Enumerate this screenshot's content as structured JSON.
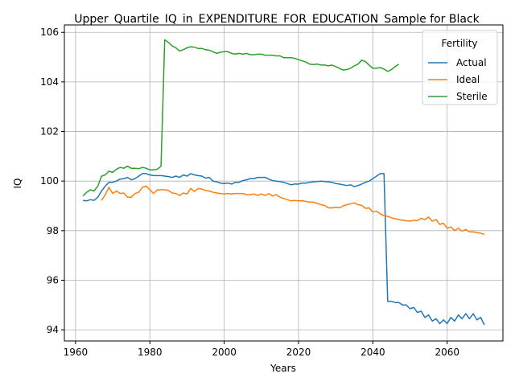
{
  "chart_data": {
    "type": "line",
    "title": "Upper_Quartile_IQ_in_EXPENDITURE_FOR_EDUCATION_Sample for Black",
    "xlabel": "Years",
    "ylabel": "IQ",
    "xlim": [
      1957,
      2075
    ],
    "ylim": [
      93.55,
      106.3
    ],
    "xticks": [
      1960,
      1980,
      2000,
      2020,
      2040,
      2060
    ],
    "yticks": [
      94,
      96,
      98,
      100,
      102,
      104,
      106
    ],
    "grid": true,
    "legend": {
      "title": "Fertility",
      "placement": "top-right"
    },
    "series": [
      {
        "name": "Actual",
        "color": "#1f77b4",
        "points": [
          [
            1962,
            99.22
          ],
          [
            1963,
            99.2
          ],
          [
            1964,
            99.25
          ],
          [
            1965,
            99.22
          ],
          [
            1966,
            99.35
          ],
          [
            1967,
            99.6
          ],
          [
            1968,
            99.8
          ],
          [
            1969,
            99.95
          ],
          [
            1970,
            99.95
          ],
          [
            1971,
            100.0
          ],
          [
            1972,
            100.08
          ],
          [
            1973,
            100.1
          ],
          [
            1974,
            100.15
          ],
          [
            1975,
            100.05
          ],
          [
            1976,
            100.1
          ],
          [
            1977,
            100.2
          ],
          [
            1978,
            100.3
          ],
          [
            1979,
            100.3
          ],
          [
            1980,
            100.25
          ],
          [
            1981,
            100.22
          ],
          [
            1982,
            100.22
          ],
          [
            1983,
            100.22
          ],
          [
            1984,
            100.2
          ],
          [
            1985,
            100.18
          ],
          [
            1986,
            100.15
          ],
          [
            1987,
            100.2
          ],
          [
            1988,
            100.15
          ],
          [
            1989,
            100.25
          ],
          [
            1990,
            100.2
          ],
          [
            1991,
            100.3
          ],
          [
            1992,
            100.25
          ],
          [
            1993,
            100.22
          ],
          [
            1994,
            100.2
          ],
          [
            1995,
            100.12
          ],
          [
            1996,
            100.15
          ],
          [
            1997,
            100.0
          ],
          [
            1998,
            99.97
          ],
          [
            1999,
            99.92
          ],
          [
            2000,
            99.9
          ],
          [
            2001,
            99.92
          ],
          [
            2002,
            99.88
          ],
          [
            2003,
            99.95
          ],
          [
            2004,
            99.95
          ],
          [
            2005,
            100.02
          ],
          [
            2006,
            100.05
          ],
          [
            2007,
            100.1
          ],
          [
            2008,
            100.1
          ],
          [
            2009,
            100.15
          ],
          [
            2010,
            100.15
          ],
          [
            2011,
            100.15
          ],
          [
            2012,
            100.08
          ],
          [
            2013,
            100.02
          ],
          [
            2014,
            100.0
          ],
          [
            2015,
            99.98
          ],
          [
            2016,
            99.95
          ],
          [
            2017,
            99.9
          ],
          [
            2018,
            99.85
          ],
          [
            2019,
            99.88
          ],
          [
            2020,
            99.88
          ],
          [
            2021,
            99.92
          ],
          [
            2022,
            99.92
          ],
          [
            2023,
            99.95
          ],
          [
            2024,
            99.97
          ],
          [
            2025,
            99.98
          ],
          [
            2026,
            100.0
          ],
          [
            2027,
            99.98
          ],
          [
            2028,
            99.97
          ],
          [
            2029,
            99.95
          ],
          [
            2030,
            99.9
          ],
          [
            2031,
            99.88
          ],
          [
            2032,
            99.85
          ],
          [
            2033,
            99.82
          ],
          [
            2034,
            99.85
          ],
          [
            2035,
            99.78
          ],
          [
            2036,
            99.82
          ],
          [
            2037,
            99.88
          ],
          [
            2038,
            99.95
          ],
          [
            2039,
            100.0
          ],
          [
            2040,
            100.1
          ],
          [
            2041,
            100.2
          ],
          [
            2042,
            100.3
          ],
          [
            2043,
            100.3
          ],
          [
            2044,
            95.15
          ],
          [
            2045,
            95.15
          ],
          [
            2046,
            95.1
          ],
          [
            2047,
            95.1
          ],
          [
            2048,
            95.0
          ],
          [
            2049,
            95.0
          ],
          [
            2050,
            94.85
          ],
          [
            2051,
            94.9
          ],
          [
            2052,
            94.7
          ],
          [
            2053,
            94.75
          ],
          [
            2054,
            94.5
          ],
          [
            2055,
            94.6
          ],
          [
            2056,
            94.35
          ],
          [
            2057,
            94.45
          ],
          [
            2058,
            94.25
          ],
          [
            2059,
            94.4
          ],
          [
            2060,
            94.25
          ],
          [
            2061,
            94.5
          ],
          [
            2062,
            94.35
          ],
          [
            2063,
            94.6
          ],
          [
            2064,
            94.45
          ],
          [
            2065,
            94.65
          ],
          [
            2066,
            94.45
          ],
          [
            2067,
            94.65
          ],
          [
            2068,
            94.4
          ],
          [
            2069,
            94.5
          ],
          [
            2070,
            94.2
          ]
        ]
      },
      {
        "name": "Ideal",
        "color": "#ff7f0e",
        "points": [
          [
            1967,
            99.22
          ],
          [
            1968,
            99.45
          ],
          [
            1969,
            99.75
          ],
          [
            1970,
            99.5
          ],
          [
            1971,
            99.6
          ],
          [
            1972,
            99.5
          ],
          [
            1973,
            99.52
          ],
          [
            1974,
            99.35
          ],
          [
            1975,
            99.35
          ],
          [
            1976,
            99.5
          ],
          [
            1977,
            99.55
          ],
          [
            1978,
            99.75
          ],
          [
            1979,
            99.8
          ],
          [
            1980,
            99.65
          ],
          [
            1981,
            99.5
          ],
          [
            1982,
            99.65
          ],
          [
            1983,
            99.65
          ],
          [
            1984,
            99.65
          ],
          [
            1985,
            99.62
          ],
          [
            1986,
            99.52
          ],
          [
            1987,
            99.5
          ],
          [
            1988,
            99.42
          ],
          [
            1989,
            99.52
          ],
          [
            1990,
            99.48
          ],
          [
            1991,
            99.7
          ],
          [
            1992,
            99.58
          ],
          [
            1993,
            99.7
          ],
          [
            1994,
            99.68
          ],
          [
            1995,
            99.62
          ],
          [
            1996,
            99.6
          ],
          [
            1997,
            99.55
          ],
          [
            1998,
            99.52
          ],
          [
            1999,
            99.5
          ],
          [
            2000,
            99.48
          ],
          [
            2001,
            99.5
          ],
          [
            2002,
            99.48
          ],
          [
            2003,
            99.5
          ],
          [
            2004,
            99.5
          ],
          [
            2005,
            99.5
          ],
          [
            2006,
            99.45
          ],
          [
            2007,
            99.45
          ],
          [
            2008,
            99.48
          ],
          [
            2009,
            99.42
          ],
          [
            2010,
            99.48
          ],
          [
            2011,
            99.42
          ],
          [
            2012,
            99.5
          ],
          [
            2013,
            99.4
          ],
          [
            2014,
            99.45
          ],
          [
            2015,
            99.35
          ],
          [
            2016,
            99.3
          ],
          [
            2017,
            99.25
          ],
          [
            2018,
            99.2
          ],
          [
            2019,
            99.22
          ],
          [
            2020,
            99.2
          ],
          [
            2021,
            99.2
          ],
          [
            2022,
            99.18
          ],
          [
            2023,
            99.15
          ],
          [
            2024,
            99.15
          ],
          [
            2025,
            99.1
          ],
          [
            2026,
            99.05
          ],
          [
            2027,
            99.02
          ],
          [
            2028,
            98.92
          ],
          [
            2029,
            98.92
          ],
          [
            2030,
            98.95
          ],
          [
            2031,
            98.92
          ],
          [
            2032,
            99.0
          ],
          [
            2033,
            99.05
          ],
          [
            2034,
            99.08
          ],
          [
            2035,
            99.12
          ],
          [
            2036,
            99.05
          ],
          [
            2037,
            99.02
          ],
          [
            2038,
            98.9
          ],
          [
            2039,
            98.92
          ],
          [
            2040,
            98.75
          ],
          [
            2041,
            98.78
          ],
          [
            2042,
            98.68
          ],
          [
            2043,
            98.6
          ],
          [
            2044,
            98.58
          ],
          [
            2045,
            98.52
          ],
          [
            2046,
            98.48
          ],
          [
            2047,
            98.45
          ],
          [
            2048,
            98.42
          ],
          [
            2049,
            98.4
          ],
          [
            2050,
            98.38
          ],
          [
            2051,
            98.42
          ],
          [
            2052,
            98.4
          ],
          [
            2053,
            98.5
          ],
          [
            2054,
            98.45
          ],
          [
            2055,
            98.55
          ],
          [
            2056,
            98.38
          ],
          [
            2057,
            98.45
          ],
          [
            2058,
            98.25
          ],
          [
            2059,
            98.3
          ],
          [
            2060,
            98.1
          ],
          [
            2061,
            98.15
          ],
          [
            2062,
            98.0
          ],
          [
            2063,
            98.1
          ],
          [
            2064,
            97.98
          ],
          [
            2065,
            98.05
          ],
          [
            2066,
            97.95
          ],
          [
            2067,
            97.95
          ],
          [
            2068,
            97.92
          ],
          [
            2069,
            97.9
          ],
          [
            2070,
            97.85
          ]
        ]
      },
      {
        "name": "Sterile",
        "color": "#2ca02c",
        "points": [
          [
            1962,
            99.4
          ],
          [
            1963,
            99.55
          ],
          [
            1964,
            99.65
          ],
          [
            1965,
            99.6
          ],
          [
            1966,
            99.8
          ],
          [
            1967,
            100.2
          ],
          [
            1968,
            100.25
          ],
          [
            1969,
            100.4
          ],
          [
            1970,
            100.35
          ],
          [
            1971,
            100.48
          ],
          [
            1972,
            100.55
          ],
          [
            1973,
            100.52
          ],
          [
            1974,
            100.6
          ],
          [
            1975,
            100.52
          ],
          [
            1976,
            100.52
          ],
          [
            1977,
            100.5
          ],
          [
            1978,
            100.55
          ],
          [
            1979,
            100.52
          ],
          [
            1980,
            100.45
          ],
          [
            1981,
            100.45
          ],
          [
            1982,
            100.48
          ],
          [
            1983,
            100.6
          ],
          [
            1984,
            105.7
          ],
          [
            1985,
            105.6
          ],
          [
            1986,
            105.45
          ],
          [
            1987,
            105.38
          ],
          [
            1988,
            105.25
          ],
          [
            1989,
            105.3
          ],
          [
            1990,
            105.38
          ],
          [
            1991,
            105.42
          ],
          [
            1992,
            105.4
          ],
          [
            1993,
            105.35
          ],
          [
            1994,
            105.35
          ],
          [
            1995,
            105.3
          ],
          [
            1996,
            105.28
          ],
          [
            1997,
            105.22
          ],
          [
            1998,
            105.15
          ],
          [
            1999,
            105.2
          ],
          [
            2000,
            105.22
          ],
          [
            2001,
            105.22
          ],
          [
            2002,
            105.15
          ],
          [
            2003,
            105.12
          ],
          [
            2004,
            105.15
          ],
          [
            2005,
            105.12
          ],
          [
            2006,
            105.15
          ],
          [
            2007,
            105.1
          ],
          [
            2008,
            105.1
          ],
          [
            2009,
            105.12
          ],
          [
            2010,
            105.12
          ],
          [
            2011,
            105.08
          ],
          [
            2012,
            105.08
          ],
          [
            2013,
            105.08
          ],
          [
            2014,
            105.05
          ],
          [
            2015,
            105.05
          ],
          [
            2016,
            104.98
          ],
          [
            2017,
            104.98
          ],
          [
            2018,
            104.98
          ],
          [
            2019,
            104.95
          ],
          [
            2020,
            104.9
          ],
          [
            2021,
            104.85
          ],
          [
            2022,
            104.8
          ],
          [
            2023,
            104.72
          ],
          [
            2024,
            104.7
          ],
          [
            2025,
            104.72
          ],
          [
            2026,
            104.68
          ],
          [
            2027,
            104.68
          ],
          [
            2028,
            104.65
          ],
          [
            2029,
            104.68
          ],
          [
            2030,
            104.62
          ],
          [
            2031,
            104.55
          ],
          [
            2032,
            104.48
          ],
          [
            2033,
            104.5
          ],
          [
            2034,
            104.55
          ],
          [
            2035,
            104.65
          ],
          [
            2036,
            104.72
          ],
          [
            2037,
            104.88
          ],
          [
            2038,
            104.82
          ],
          [
            2039,
            104.68
          ],
          [
            2040,
            104.55
          ],
          [
            2041,
            104.55
          ],
          [
            2042,
            104.58
          ],
          [
            2043,
            104.52
          ],
          [
            2044,
            104.42
          ],
          [
            2045,
            104.5
          ],
          [
            2046,
            104.62
          ],
          [
            2047,
            104.72
          ]
        ]
      }
    ]
  }
}
